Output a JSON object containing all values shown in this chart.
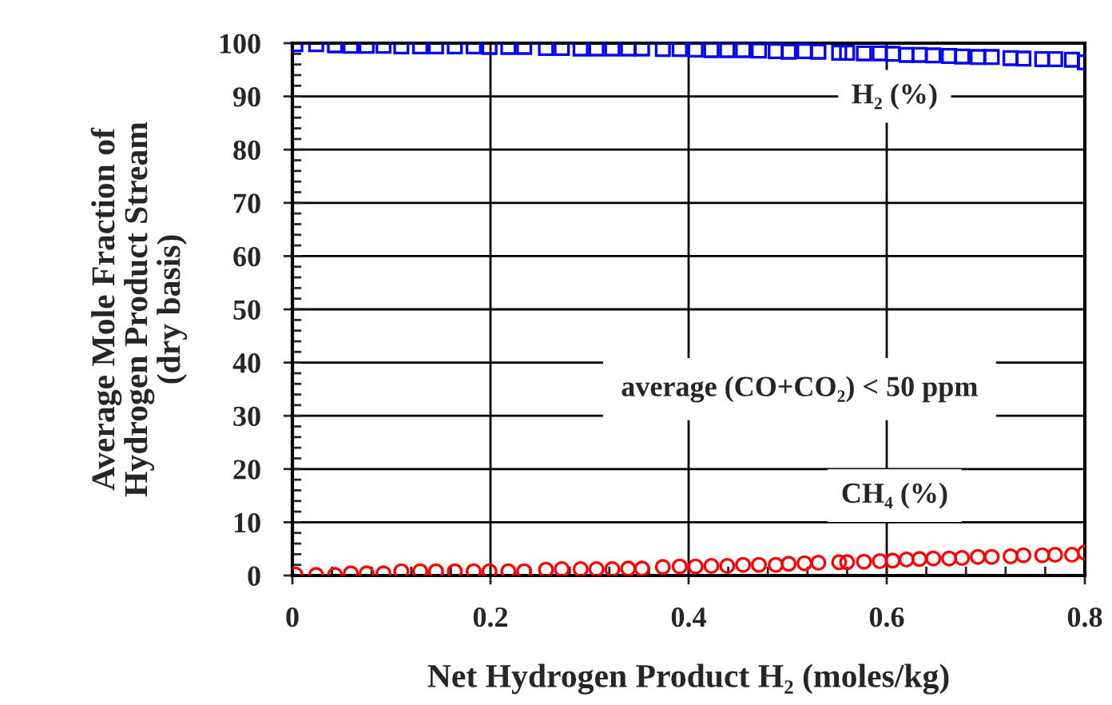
{
  "chart_data": {
    "type": "scatter",
    "xlabel": "Net Hydrogen Product H₂ (moles/kg)",
    "ylabel": "Average Mole Fraction of\nHydrogen Product Stream\n(dry basis)",
    "x": [
      0.003,
      0.024,
      0.043,
      0.059,
      0.075,
      0.092,
      0.11,
      0.129,
      0.145,
      0.164,
      0.183,
      0.199,
      0.218,
      0.234,
      0.256,
      0.272,
      0.291,
      0.307,
      0.323,
      0.339,
      0.353,
      0.374,
      0.391,
      0.407,
      0.423,
      0.439,
      0.455,
      0.471,
      0.488,
      0.501,
      0.517,
      0.531,
      0.552,
      0.56,
      0.577,
      0.593,
      0.606,
      0.62,
      0.633,
      0.647,
      0.663,
      0.676,
      0.692,
      0.706,
      0.725,
      0.738,
      0.757,
      0.77,
      0.787,
      0.8
    ],
    "series": [
      {
        "name": "H₂ (%)",
        "color": "#0000ff",
        "marker": "square",
        "values": [
          99.8,
          99.8,
          99.6,
          99.5,
          99.5,
          99.5,
          99.4,
          99.4,
          99.4,
          99.4,
          99.4,
          99.3,
          99.3,
          99.3,
          99.1,
          99.1,
          99.0,
          99.0,
          99.0,
          99.0,
          99.0,
          98.9,
          98.9,
          98.8,
          98.7,
          98.7,
          98.7,
          98.6,
          98.5,
          98.4,
          98.5,
          98.4,
          98.2,
          98.2,
          98.1,
          98.1,
          98.0,
          97.8,
          97.8,
          97.7,
          97.6,
          97.5,
          97.4,
          97.4,
          97.2,
          97.1,
          97.0,
          97.0,
          96.9,
          96.4
        ]
      },
      {
        "name": "CH₄ (%)",
        "color": "#ff0000",
        "marker": "circle",
        "values": [
          0.2,
          0.1,
          0.1,
          0.4,
          0.4,
          0.4,
          0.8,
          0.8,
          0.8,
          0.8,
          0.8,
          0.8,
          0.8,
          0.8,
          1.1,
          1.2,
          1.2,
          1.2,
          1.2,
          1.3,
          1.3,
          1.6,
          1.7,
          1.7,
          1.8,
          1.8,
          2.0,
          2.0,
          2.0,
          2.2,
          2.3,
          2.4,
          2.5,
          2.5,
          2.6,
          2.7,
          2.8,
          3.0,
          3.1,
          3.2,
          3.2,
          3.3,
          3.5,
          3.5,
          3.6,
          3.8,
          3.8,
          3.9,
          3.9,
          4.3
        ]
      }
    ],
    "annotations": [
      "average (CO+CO₂) < 50 ppm"
    ],
    "xlim": [
      0,
      0.8
    ],
    "xticks": [
      0,
      0.2,
      0.4,
      0.6,
      0.8
    ],
    "ylim": [
      0,
      100
    ],
    "yticks": [
      0,
      10,
      20,
      30,
      40,
      50,
      60,
      70,
      80,
      90,
      100
    ],
    "grid": true,
    "legend": false
  }
}
